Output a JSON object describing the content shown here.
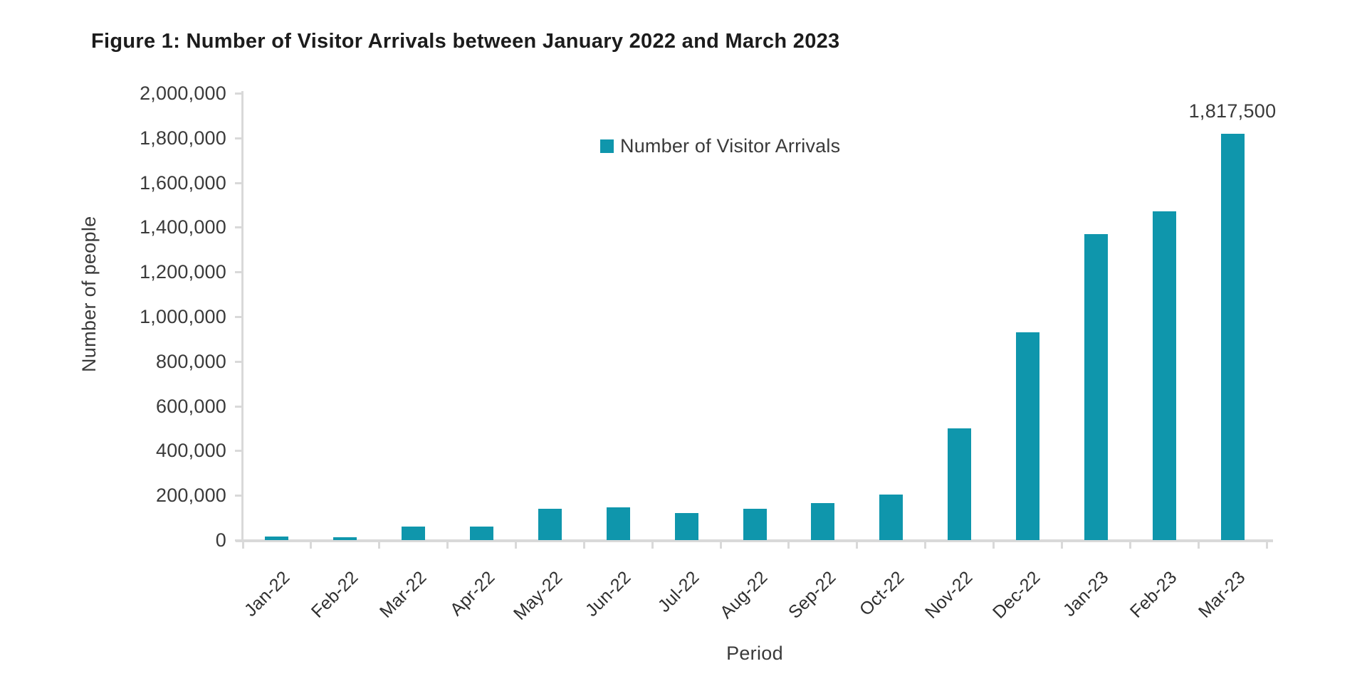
{
  "figure": {
    "title": "Figure 1: Number of Visitor Arrivals between January 2022 and March 2023"
  },
  "chart_data": {
    "type": "bar",
    "title": "Figure 1: Number of Visitor Arrivals between January 2022 and March 2023",
    "categories": [
      "Jan-22",
      "Feb-22",
      "Mar-22",
      "Apr-22",
      "May-22",
      "Jun-22",
      "Jul-22",
      "Aug-22",
      "Sep-22",
      "Oct-22",
      "Nov-22",
      "Dec-22",
      "Jan-23",
      "Feb-23",
      "Mar-23"
    ],
    "series": [
      {
        "name": "Number of Visitor Arrivals",
        "values": [
          15000,
          13000,
          62000,
          62000,
          139000,
          145000,
          120000,
          140000,
          166000,
          205000,
          500000,
          930000,
          1370000,
          1470000,
          1817500
        ]
      }
    ],
    "xlabel": "Period",
    "ylabel": "Number of people",
    "ylim": [
      0,
      2000000
    ],
    "ytick_step": 200000,
    "grid": false,
    "legend_position": "top-center",
    "annotations": [
      {
        "category": "Mar-23",
        "text": "1,817,500"
      }
    ],
    "bar_color": "#0f96ac",
    "axis_color": "#d9d9d9",
    "text_color": "#3a3a3a"
  }
}
